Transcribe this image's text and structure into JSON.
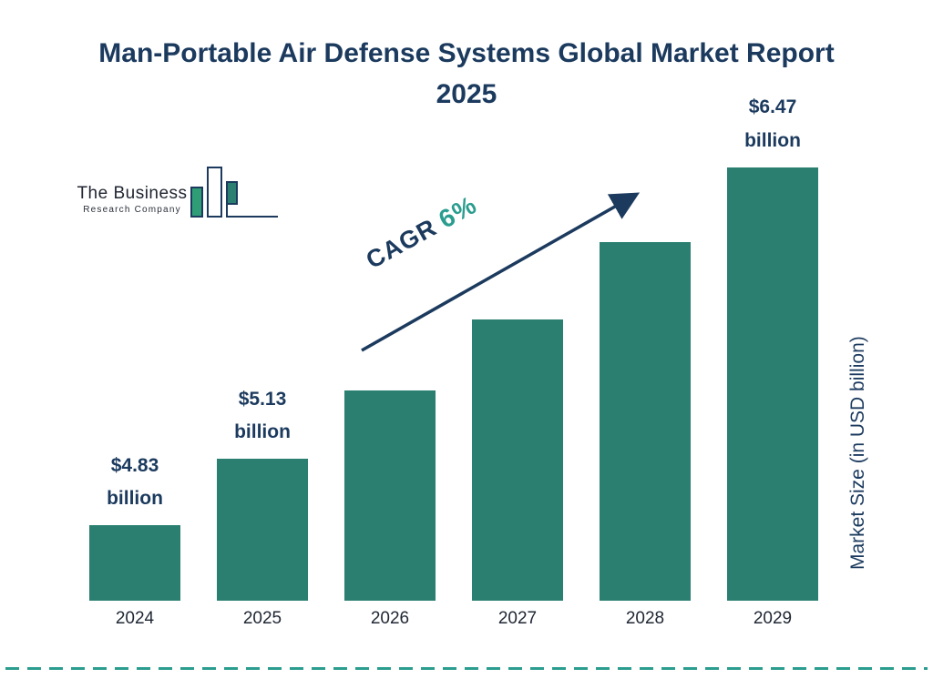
{
  "title": "Man-Portable Air Defense Systems Global Market Report 2025",
  "logo": {
    "line1": "The Business",
    "line2": "Research Company"
  },
  "cagr": {
    "prefix": "CAGR",
    "value": "6%"
  },
  "y_axis_label": "Market Size (in USD billion)",
  "chart_data": {
    "type": "bar",
    "title": "Man-Portable Air Defense Systems Global Market Report 2025",
    "categories": [
      "2024",
      "2025",
      "2026",
      "2027",
      "2028",
      "2029"
    ],
    "values": [
      4.83,
      5.13,
      5.44,
      5.76,
      6.11,
      6.47
    ],
    "bar_labels": [
      "$4.83 billion",
      "$5.13 billion",
      "",
      "",
      "",
      "$6.47 billion"
    ],
    "cagr_annotation": "CAGR 6%",
    "xlabel": "",
    "ylabel": "Market Size (in USD billion)",
    "ylim_displayed": [
      4.49,
      6.6
    ],
    "grid": false,
    "legend": "none",
    "bar_color": "#2a7f71",
    "accent_navy": "#1b3a5e",
    "accent_teal": "#2a9d8f"
  }
}
